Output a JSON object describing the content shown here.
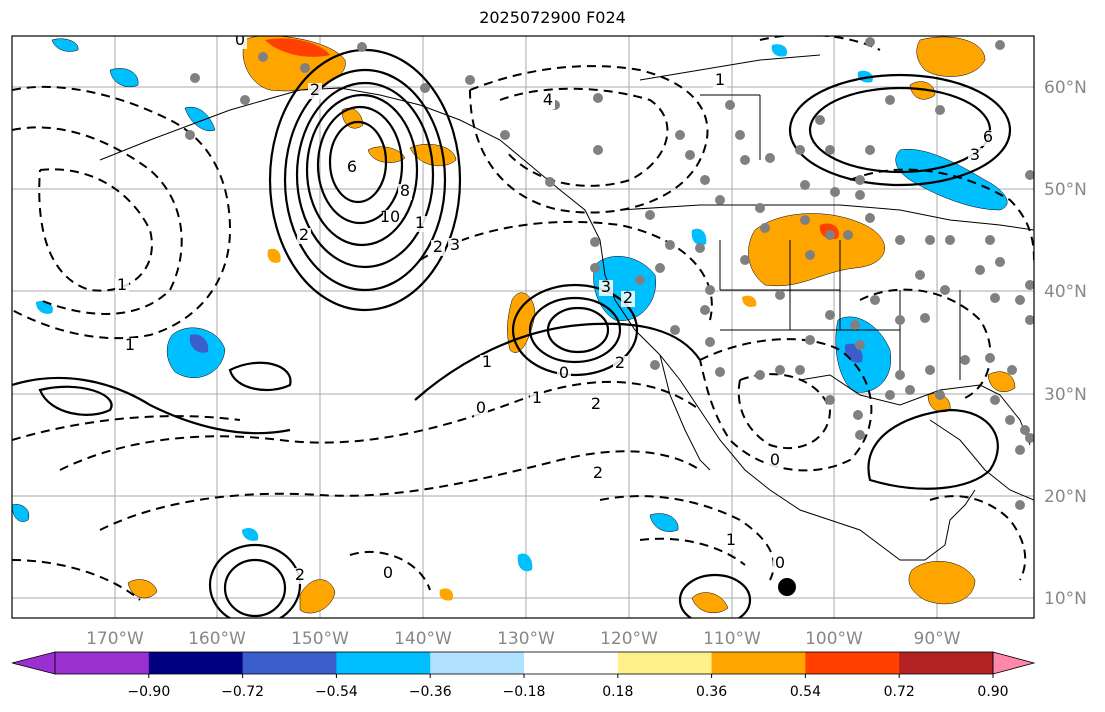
{
  "title": "2025072900 F024",
  "lon_labels": [
    "170°W",
    "160°W",
    "150°W",
    "140°W",
    "130°W",
    "120°W",
    "110°W",
    "100°W",
    "90°W"
  ],
  "lat_labels": [
    "60°N",
    "50°N",
    "40°N",
    "30°N",
    "20°N",
    "10°N"
  ],
  "colorbar": {
    "ticks": [
      "−0.90",
      "−0.72",
      "−0.54",
      "−0.36",
      "−0.18",
      "0.18",
      "0.36",
      "0.54",
      "0.72",
      "0.90"
    ],
    "colors": [
      "#9b30d0",
      "#000080",
      "#3a5fcd",
      "#00bfff",
      "#b0e2ff",
      "#ffffff",
      "#fff08a",
      "#ffa500",
      "#ff4000",
      "#b22222",
      "#ff88aa"
    ]
  },
  "contour_labels": [
    "0",
    "2",
    "4",
    "6",
    "8",
    "10",
    "1",
    "2",
    "3",
    "2",
    "1",
    "1",
    "0",
    "1",
    "2",
    "2",
    "1",
    "0",
    "0",
    "2",
    "3",
    "2",
    "1",
    "0",
    "0",
    "1",
    "4",
    "2",
    "6",
    "3"
  ],
  "colors": {
    "frame": "#000000",
    "grid": "#aaaaaa",
    "station": "#808080"
  }
}
